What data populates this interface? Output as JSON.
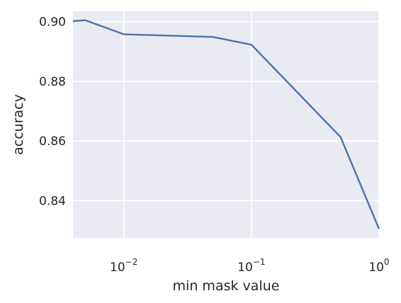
{
  "chart_data": {
    "type": "line",
    "xscale": "log",
    "xlabel": "min mask value",
    "ylabel": "accuracy",
    "xlim": [
      0.004,
      1.0
    ],
    "ylim": [
      0.8275,
      0.9035
    ],
    "grid": true,
    "colors": {
      "background": "#eaeaf2",
      "grid": "#ffffff",
      "line": "#4c72b0"
    },
    "x_ticks": [
      {
        "value": 0.01,
        "base": "10",
        "exp": "−2"
      },
      {
        "value": 0.1,
        "base": "10",
        "exp": "−1"
      },
      {
        "value": 1,
        "base": "10",
        "exp": "0"
      }
    ],
    "y_ticks": [
      {
        "value": 0.84,
        "label": "0.84"
      },
      {
        "value": 0.86,
        "label": "0.86"
      },
      {
        "value": 0.88,
        "label": "0.88"
      },
      {
        "value": 0.9,
        "label": "0.90"
      }
    ],
    "series": [
      {
        "x": [
          0.004,
          0.005,
          0.01,
          0.05,
          0.1,
          0.5,
          1.0
        ],
        "y": [
          0.9002,
          0.9005,
          0.8958,
          0.8949,
          0.8923,
          0.8613,
          0.8305
        ]
      }
    ]
  }
}
